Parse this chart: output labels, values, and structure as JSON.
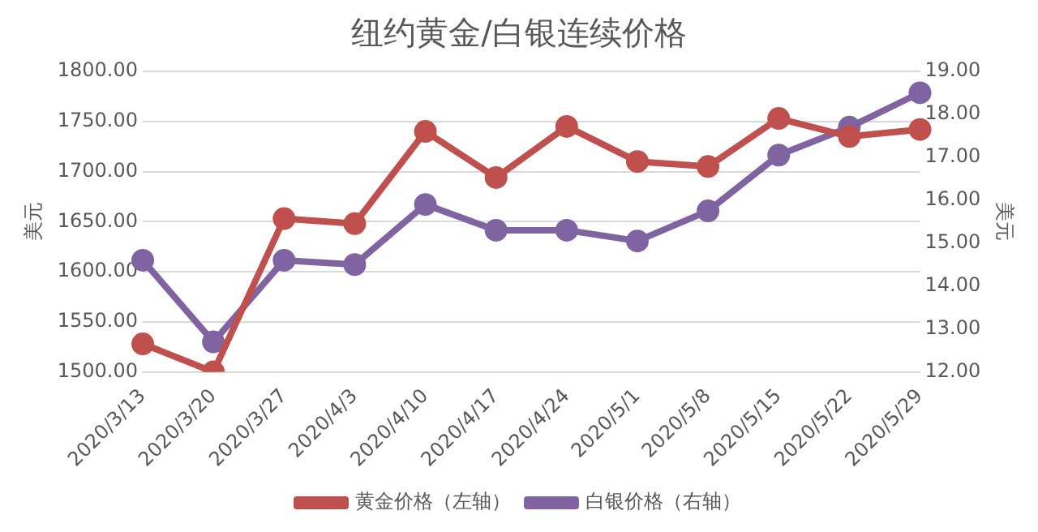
{
  "chart_data": {
    "type": "line",
    "title": "纽约黄金/白银连续价格",
    "ylabel": "美元",
    "y2label": "美元",
    "categories": [
      "2020/3/13",
      "2020/3/20",
      "2020/3/27",
      "2020/4/3",
      "2020/4/10",
      "2020/4/17",
      "2020/4/24",
      "2020/5/1",
      "2020/5/8",
      "2020/5/15",
      "2020/5/22",
      "2020/5/29"
    ],
    "series": [
      {
        "name": "黄金价格（左轴）",
        "color": "#c0504d",
        "values": [
          1528,
          1500,
          1653,
          1648,
          1740,
          1694,
          1745,
          1710,
          1705,
          1753,
          1735,
          1742
        ]
      },
      {
        "name": "白银价格（右轴）",
        "color": "#8064a2",
        "axis": "y2",
        "values": [
          14.6,
          12.7,
          14.6,
          14.5,
          15.9,
          15.3,
          15.3,
          15.05,
          15.75,
          17.05,
          17.7,
          18.5
        ]
      }
    ],
    "ylim": [
      1500,
      1800
    ],
    "yticks": [
      {
        "value": 1500,
        "label": "1500.00"
      },
      {
        "value": 1550,
        "label": "1550.00"
      },
      {
        "value": 1600,
        "label": "1600.00"
      },
      {
        "value": 1650,
        "label": "1650.00"
      },
      {
        "value": 1700,
        "label": "1700.00"
      },
      {
        "value": 1750,
        "label": "1750.00"
      },
      {
        "value": 1800,
        "label": "1800.00"
      }
    ],
    "y2lim": [
      12,
      19
    ],
    "y2ticks": [
      {
        "value": 12,
        "label": "12.00"
      },
      {
        "value": 13,
        "label": "13.00"
      },
      {
        "value": 14,
        "label": "14.00"
      },
      {
        "value": 15,
        "label": "15.00"
      },
      {
        "value": 16,
        "label": "16.00"
      },
      {
        "value": 17,
        "label": "17.00"
      },
      {
        "value": 18,
        "label": "18.00"
      },
      {
        "value": 19,
        "label": "19.00"
      }
    ],
    "grid": "y",
    "legend": "bottom",
    "marker": "circle",
    "line_style": "solid"
  }
}
